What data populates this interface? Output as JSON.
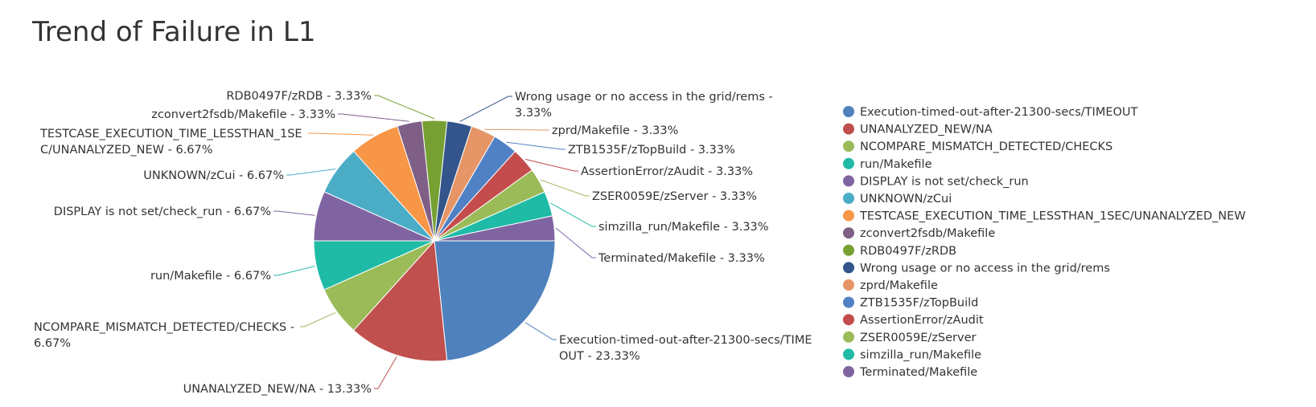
{
  "chart_data": {
    "type": "pie",
    "title": "Trend of Failure in L1",
    "legend_position": "right",
    "slices": [
      {
        "name": "Execution-timed-out-after-21300-secs/TIMEOUT",
        "value": 23.33,
        "color": "#4f81bd",
        "label_lines": [
          "Execution-timed-out-after-21300-secs/TIME",
          "OUT - 23.33%"
        ]
      },
      {
        "name": "UNANALYZED_NEW/NA",
        "value": 13.33,
        "color": "#c0504d",
        "label_lines": [
          "UNANALYZED_NEW/NA - 13.33%"
        ]
      },
      {
        "name": "NCOMPARE_MISMATCH_DETECTED/CHECKS",
        "value": 6.67,
        "color": "#9bbb59",
        "label_lines": [
          "NCOMPARE_MISMATCH_DETECTED/CHECKS -",
          "6.67%"
        ]
      },
      {
        "name": "run/Makefile",
        "value": 6.67,
        "color": "#1fbba6",
        "label_lines": [
          "run/Makefile - 6.67%"
        ]
      },
      {
        "name": "DISPLAY is not set/check_run",
        "value": 6.67,
        "color": "#8064a2",
        "label_lines": [
          "DISPLAY is not set/check_run - 6.67%"
        ]
      },
      {
        "name": "UNKNOWN/zCui",
        "value": 6.67,
        "color": "#4bacc6",
        "label_lines": [
          "UNKNOWN/zCui - 6.67%"
        ]
      },
      {
        "name": "TESTCASE_EXECUTION_TIME_LESSTHAN_1SEC/UNANALYZED_NEW",
        "value": 6.67,
        "color": "#f79646",
        "label_lines": [
          "TESTCASE_EXECUTION_TIME_LESSTHAN_1SE",
          "C/UNANALYZED_NEW - 6.67%"
        ]
      },
      {
        "name": "zconvert2fsdb/Makefile",
        "value": 3.33,
        "color": "#7f5f86",
        "label_lines": [
          "zconvert2fsdb/Makefile - 3.33%"
        ]
      },
      {
        "name": "RDB0497F/zRDB",
        "value": 3.33,
        "color": "#77a033",
        "label_lines": [
          "RDB0497F/zRDB - 3.33%"
        ]
      },
      {
        "name": "Wrong usage or no access in the grid/rems",
        "value": 3.33,
        "color": "#33558b",
        "label_lines": [
          "Wrong usage or no access in the grid/rems -",
          "3.33%"
        ]
      },
      {
        "name": "zprd/Makefile",
        "value": 3.33,
        "color": "#e59566",
        "label_lines": [
          "zprd/Makefile - 3.33%"
        ]
      },
      {
        "name": "ZTB1535F/zTopBuild",
        "value": 3.33,
        "color": "#5181c5",
        "label_lines": [
          "ZTB1535F/zTopBuild - 3.33%"
        ]
      },
      {
        "name": "AssertionError/zAudit",
        "value": 3.33,
        "color": "#c44c4c",
        "label_lines": [
          "AssertionError/zAudit - 3.33%"
        ]
      },
      {
        "name": "ZSER0059E/zServer",
        "value": 3.33,
        "color": "#9bbb59",
        "label_lines": [
          "ZSER0059E/zServer - 3.33%"
        ]
      },
      {
        "name": "simzilla_run/Makefile",
        "value": 3.33,
        "color": "#1fbba6",
        "label_lines": [
          "simzilla_run/Makefile - 3.33%"
        ]
      },
      {
        "name": "Terminated/Makefile",
        "value": 3.33,
        "color": "#8064a2",
        "label_lines": [
          "Terminated/Makefile - 3.33%"
        ]
      }
    ]
  }
}
